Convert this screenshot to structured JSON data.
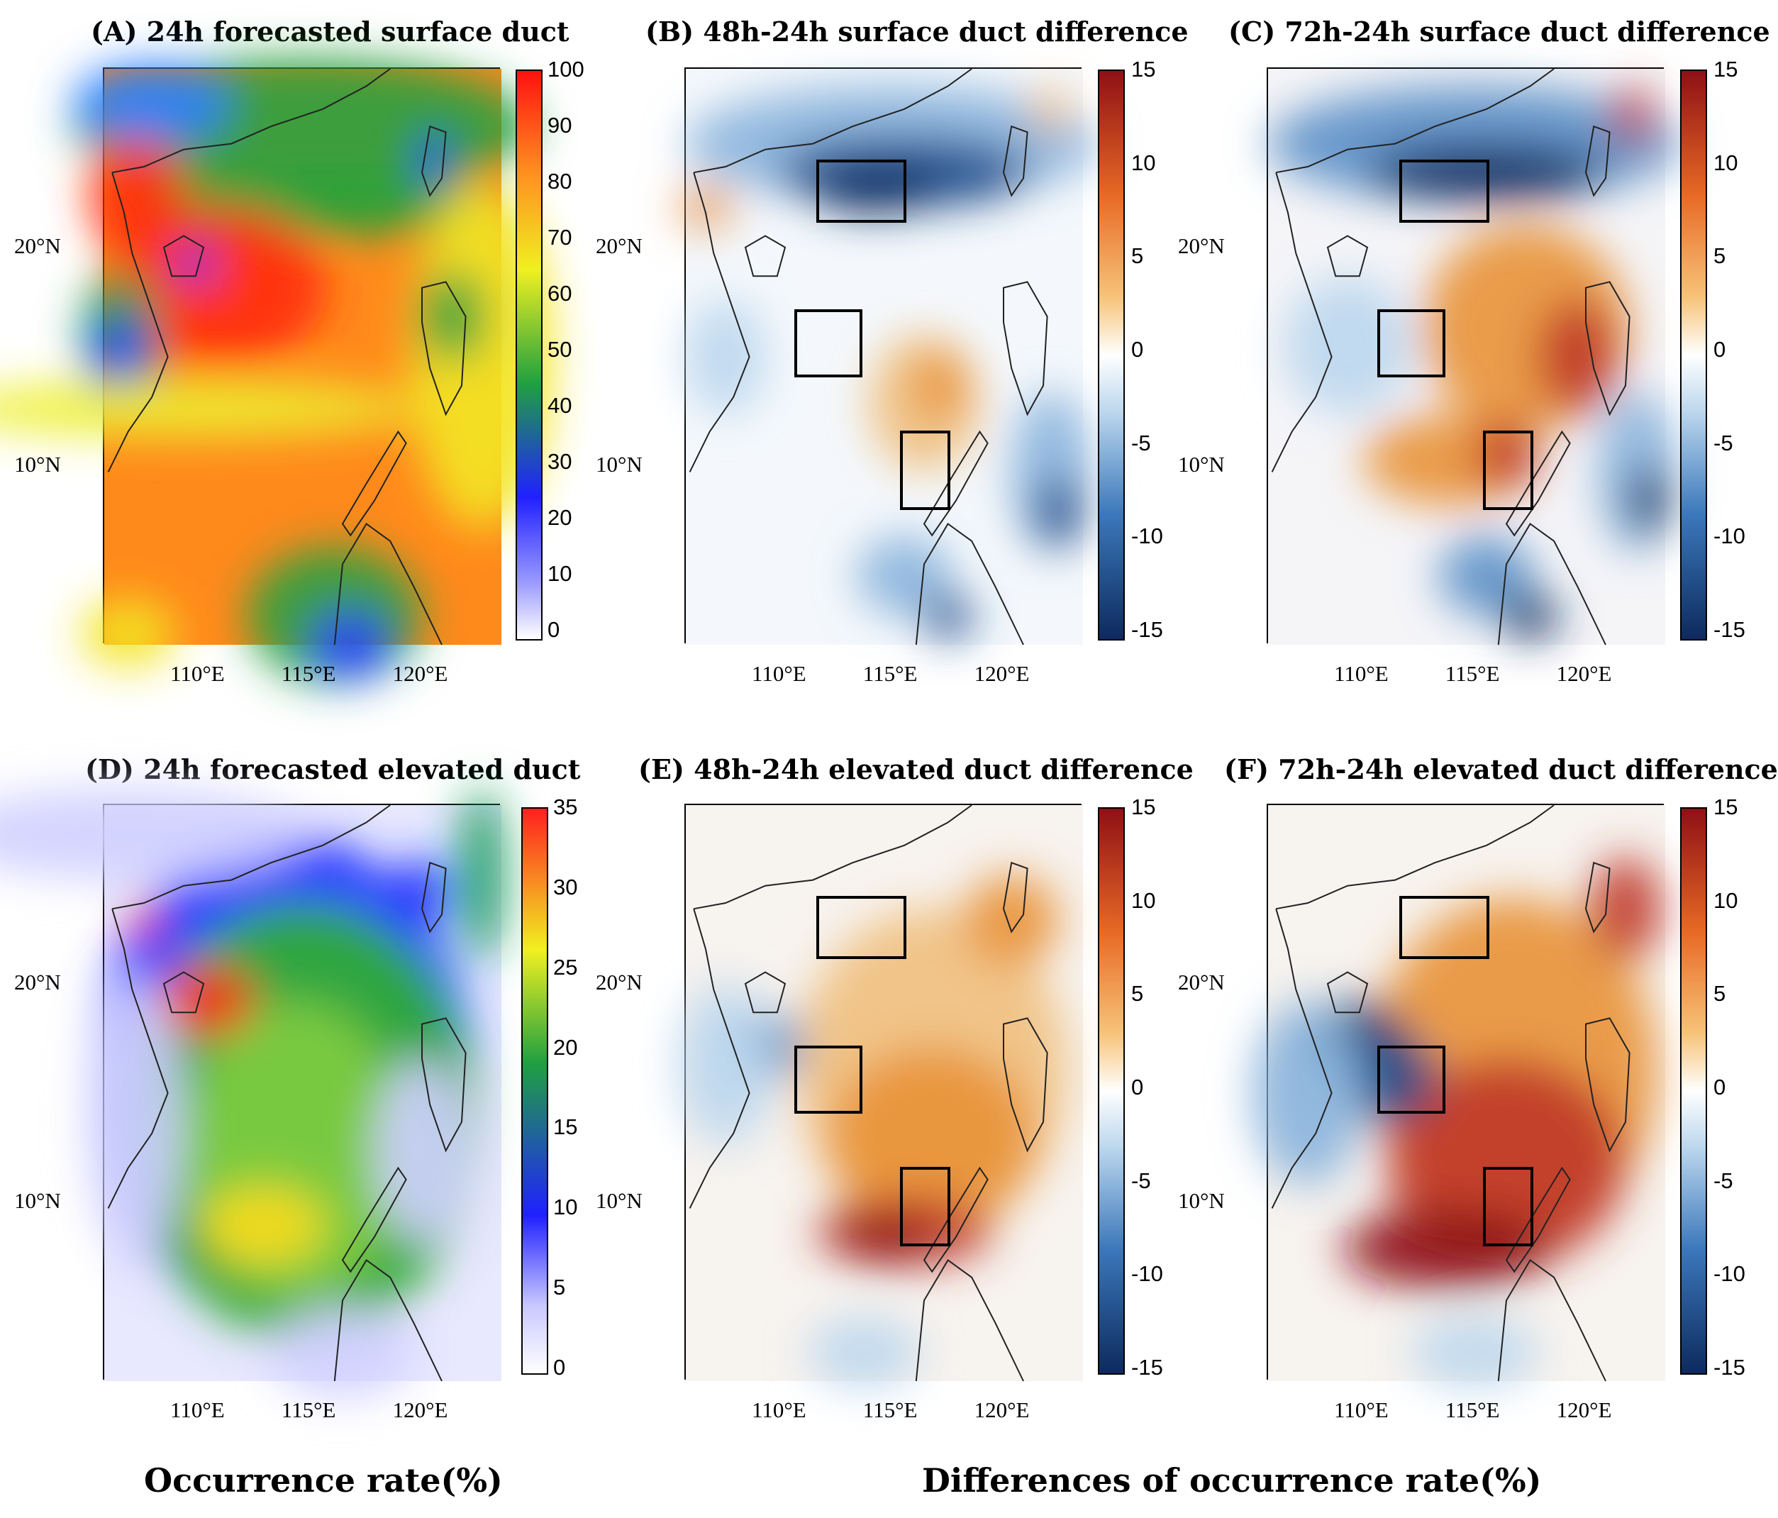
{
  "panels": [
    {
      "id": "A",
      "title": "(A) 24h forecasted surface duct",
      "kind": "abs-surface"
    },
    {
      "id": "B",
      "title": "(B) 48h-24h surface duct difference",
      "kind": "diff-surface-48"
    },
    {
      "id": "C",
      "title": "(C) 72h-24h surface duct difference",
      "kind": "diff-surface-72"
    },
    {
      "id": "D",
      "title": "(D) 24h forecasted elevated duct",
      "kind": "abs-elevated"
    },
    {
      "id": "E",
      "title": "(E) 48h-24h elevated duct difference",
      "kind": "diff-elevated-48"
    },
    {
      "id": "F",
      "title": "(F) 72h-24h elevated duct difference",
      "kind": "diff-elevated-72"
    }
  ],
  "axes": {
    "lon_labels": [
      "110°E",
      "115°E",
      "120°E"
    ],
    "lat_labels": [
      "20°N",
      "10°N"
    ]
  },
  "colorbars": {
    "surface_abs": [
      "100",
      "90",
      "80",
      "70",
      "60",
      "50",
      "40",
      "30",
      "20",
      "10",
      "0"
    ],
    "elevated_abs": [
      "35",
      "30",
      "25",
      "20",
      "15",
      "10",
      "5",
      "0"
    ],
    "diff": [
      "15",
      "10",
      "5",
      "0",
      "-5",
      "-10",
      "-15"
    ]
  },
  "footer": {
    "left": "Occurrence rate(%)",
    "right": "Differences of occurrence rate(%)"
  },
  "colors": {
    "abs_surface_scale": [
      "#ffffff",
      "#2020ff",
      "#20a040",
      "#f0f020",
      "#ff9020",
      "#ff1010"
    ],
    "abs_elevated_scale": [
      "#ffffff",
      "#c8c8ff",
      "#2020ff",
      "#20a040",
      "#f0f020",
      "#ff2020"
    ],
    "diff_scale": [
      "#0d2a5e",
      "#3b78bb",
      "#bcd7ee",
      "#ffffff",
      "#f7c47a",
      "#e86a25",
      "#8e1015"
    ]
  }
}
